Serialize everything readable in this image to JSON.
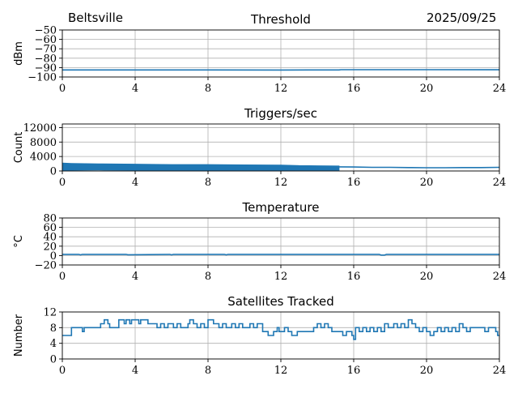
{
  "header": {
    "station": "Beltsville",
    "date": "2025/09/25"
  },
  "style": {
    "line_color": "#1f77b4",
    "grid_color": "#b0b0b0",
    "axes_color": "#000000"
  },
  "chart_data": [
    {
      "type": "line",
      "title": "Threshold",
      "ylabel": "dBm",
      "xlim": [
        0,
        24
      ],
      "ylim": [
        -100,
        -50
      ],
      "xticks": [
        0,
        4,
        8,
        12,
        16,
        20,
        24
      ],
      "yticks": [
        -100,
        -90,
        -80,
        -70,
        -60,
        -50
      ],
      "grid": true,
      "series": [
        {
          "x": [
            0,
            4,
            8,
            12,
            15.2,
            15.3,
            20,
            24
          ],
          "y": [
            -92.5,
            -92.5,
            -92.5,
            -92.6,
            -92.5,
            -92.2,
            -92.2,
            -92.3
          ]
        }
      ]
    },
    {
      "type": "line",
      "title": "Triggers/sec",
      "ylabel": "Count",
      "xlim": [
        0,
        24
      ],
      "ylim": [
        0,
        13000
      ],
      "xticks": [
        0,
        4,
        8,
        12,
        16,
        20,
        24
      ],
      "yticks": [
        0,
        4000,
        8000,
        12000
      ],
      "grid": true,
      "band": {
        "x": [
          0,
          0.5,
          2,
          4,
          6,
          8,
          10,
          12,
          13,
          14,
          15.2
        ],
        "low": [
          200,
          200,
          250,
          200,
          200,
          150,
          200,
          150,
          200,
          200,
          200
        ],
        "high": [
          2200,
          2100,
          2000,
          1900,
          1800,
          1800,
          1700,
          1650,
          1500,
          1450,
          1400
        ]
      },
      "series": [
        {
          "x": [
            15.2,
            16,
            17,
            18,
            19,
            20,
            21,
            22,
            23,
            24
          ],
          "y": [
            1150,
            1100,
            1000,
            1000,
            950,
            900,
            900,
            950,
            950,
            1000
          ]
        }
      ]
    },
    {
      "type": "line",
      "title": "Temperature",
      "ylabel": "°C",
      "xlim": [
        0,
        24
      ],
      "ylim": [
        -20,
        80
      ],
      "xticks": [
        0,
        4,
        8,
        12,
        16,
        20,
        24
      ],
      "yticks": [
        -20,
        0,
        20,
        40,
        60,
        80
      ],
      "grid": true,
      "series": [
        {
          "x": [
            0,
            0.9,
            1.0,
            1.1,
            3.5,
            3.6,
            5.9,
            6.0,
            6.1,
            8.9,
            9.0,
            9.1,
            17.4,
            17.5,
            17.7,
            17.8,
            24
          ],
          "y": [
            2.5,
            2.5,
            1.5,
            2.5,
            2.5,
            1.8,
            2.5,
            1.5,
            2.5,
            2.5,
            1.5,
            2.5,
            2.5,
            1.0,
            1.0,
            2.5,
            2.5
          ]
        }
      ]
    },
    {
      "type": "line",
      "title": "Satellites Tracked",
      "ylabel": "Number",
      "xlim": [
        0,
        24
      ],
      "ylim": [
        0,
        12
      ],
      "xticks": [
        0,
        4,
        8,
        12,
        16,
        20,
        24
      ],
      "yticks": [
        0,
        4,
        8,
        12
      ],
      "grid": true,
      "series": [
        {
          "steps": [
            [
              0,
              6
            ],
            [
              0.5,
              8
            ],
            [
              1.1,
              7
            ],
            [
              1.2,
              8
            ],
            [
              2.1,
              9
            ],
            [
              2.3,
              10
            ],
            [
              2.5,
              9
            ],
            [
              2.6,
              8
            ],
            [
              3.1,
              10
            ],
            [
              3.4,
              9
            ],
            [
              3.5,
              10
            ],
            [
              3.7,
              9
            ],
            [
              3.8,
              10
            ],
            [
              4.2,
              9
            ],
            [
              4.3,
              10
            ],
            [
              4.6,
              10
            ],
            [
              4.7,
              9
            ],
            [
              5.2,
              8
            ],
            [
              5.4,
              9
            ],
            [
              5.6,
              8
            ],
            [
              5.8,
              9
            ],
            [
              6.1,
              8
            ],
            [
              6.3,
              9
            ],
            [
              6.5,
              8
            ],
            [
              6.9,
              9
            ],
            [
              7.0,
              10
            ],
            [
              7.2,
              9
            ],
            [
              7.4,
              8
            ],
            [
              7.6,
              9
            ],
            [
              7.8,
              8
            ],
            [
              8.0,
              10
            ],
            [
              8.3,
              9
            ],
            [
              8.6,
              8
            ],
            [
              8.8,
              9
            ],
            [
              9.0,
              8
            ],
            [
              9.3,
              9
            ],
            [
              9.5,
              8
            ],
            [
              9.7,
              9
            ],
            [
              9.9,
              8
            ],
            [
              10.3,
              9
            ],
            [
              10.5,
              8
            ],
            [
              10.7,
              9
            ],
            [
              11.0,
              7
            ],
            [
              11.3,
              6
            ],
            [
              11.6,
              7
            ],
            [
              11.8,
              8
            ],
            [
              11.9,
              7
            ],
            [
              12.2,
              8
            ],
            [
              12.4,
              7
            ],
            [
              12.6,
              6
            ],
            [
              12.9,
              7
            ],
            [
              13.2,
              7
            ],
            [
              13.6,
              7
            ],
            [
              13.8,
              8
            ],
            [
              14.0,
              9
            ],
            [
              14.2,
              8
            ],
            [
              14.4,
              9
            ],
            [
              14.6,
              8
            ],
            [
              14.8,
              7
            ],
            [
              15.1,
              7
            ],
            [
              15.4,
              6
            ],
            [
              15.6,
              7
            ],
            [
              15.9,
              6
            ],
            [
              16.0,
              5
            ],
            [
              16.1,
              8
            ],
            [
              16.3,
              7
            ],
            [
              16.5,
              8
            ],
            [
              16.7,
              7
            ],
            [
              16.9,
              8
            ],
            [
              17.1,
              7
            ],
            [
              17.3,
              8
            ],
            [
              17.5,
              7
            ],
            [
              17.7,
              9
            ],
            [
              17.9,
              8
            ],
            [
              18.2,
              9
            ],
            [
              18.4,
              8
            ],
            [
              18.6,
              9
            ],
            [
              18.8,
              8
            ],
            [
              19.0,
              10
            ],
            [
              19.2,
              9
            ],
            [
              19.4,
              8
            ],
            [
              19.6,
              7
            ],
            [
              19.8,
              8
            ],
            [
              20.0,
              7
            ],
            [
              20.2,
              6
            ],
            [
              20.4,
              7
            ],
            [
              20.6,
              8
            ],
            [
              20.8,
              7
            ],
            [
              21.0,
              8
            ],
            [
              21.2,
              7
            ],
            [
              21.4,
              8
            ],
            [
              21.6,
              7
            ],
            [
              21.8,
              9
            ],
            [
              22.0,
              8
            ],
            [
              22.2,
              7
            ],
            [
              22.4,
              8
            ],
            [
              22.6,
              8
            ],
            [
              22.8,
              8
            ],
            [
              23.0,
              8
            ],
            [
              23.2,
              7
            ],
            [
              23.4,
              8
            ],
            [
              23.7,
              8
            ],
            [
              23.8,
              7
            ],
            [
              23.9,
              6
            ],
            [
              24,
              6
            ]
          ]
        }
      ]
    }
  ]
}
